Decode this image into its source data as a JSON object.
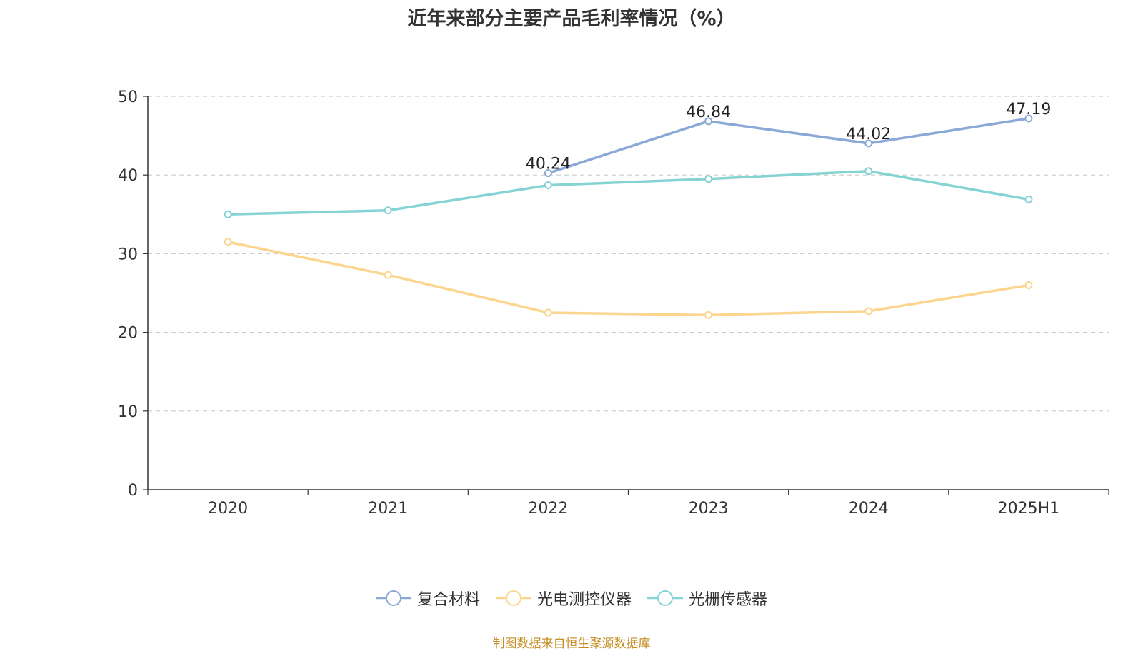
{
  "title": "近年来部分主要产品毛利率情况（%）",
  "source_note": "制图数据来自恒生聚源数据库",
  "chart_data": {
    "type": "line",
    "categories": [
      "2020",
      "2021",
      "2022",
      "2023",
      "2024",
      "2025H1"
    ],
    "ylim": [
      0,
      50
    ],
    "y_ticks": [
      0,
      10,
      20,
      30,
      40,
      50
    ],
    "grid": true,
    "legend_position": "bottom",
    "series": [
      {
        "name": "复合材料",
        "color": "#8ba9d6",
        "values": [
          null,
          null,
          40.24,
          46.84,
          44.02,
          47.19
        ],
        "show_labels": true
      },
      {
        "name": "光电测控仪器",
        "color": "#fcd58f",
        "values": [
          31.5,
          27.3,
          22.5,
          22.2,
          22.7,
          26.0
        ],
        "show_labels": false
      },
      {
        "name": "光栅传感器",
        "color": "#86d3d3",
        "values": [
          35.0,
          35.5,
          38.7,
          39.5,
          40.5,
          36.9
        ],
        "show_labels": false
      }
    ]
  }
}
